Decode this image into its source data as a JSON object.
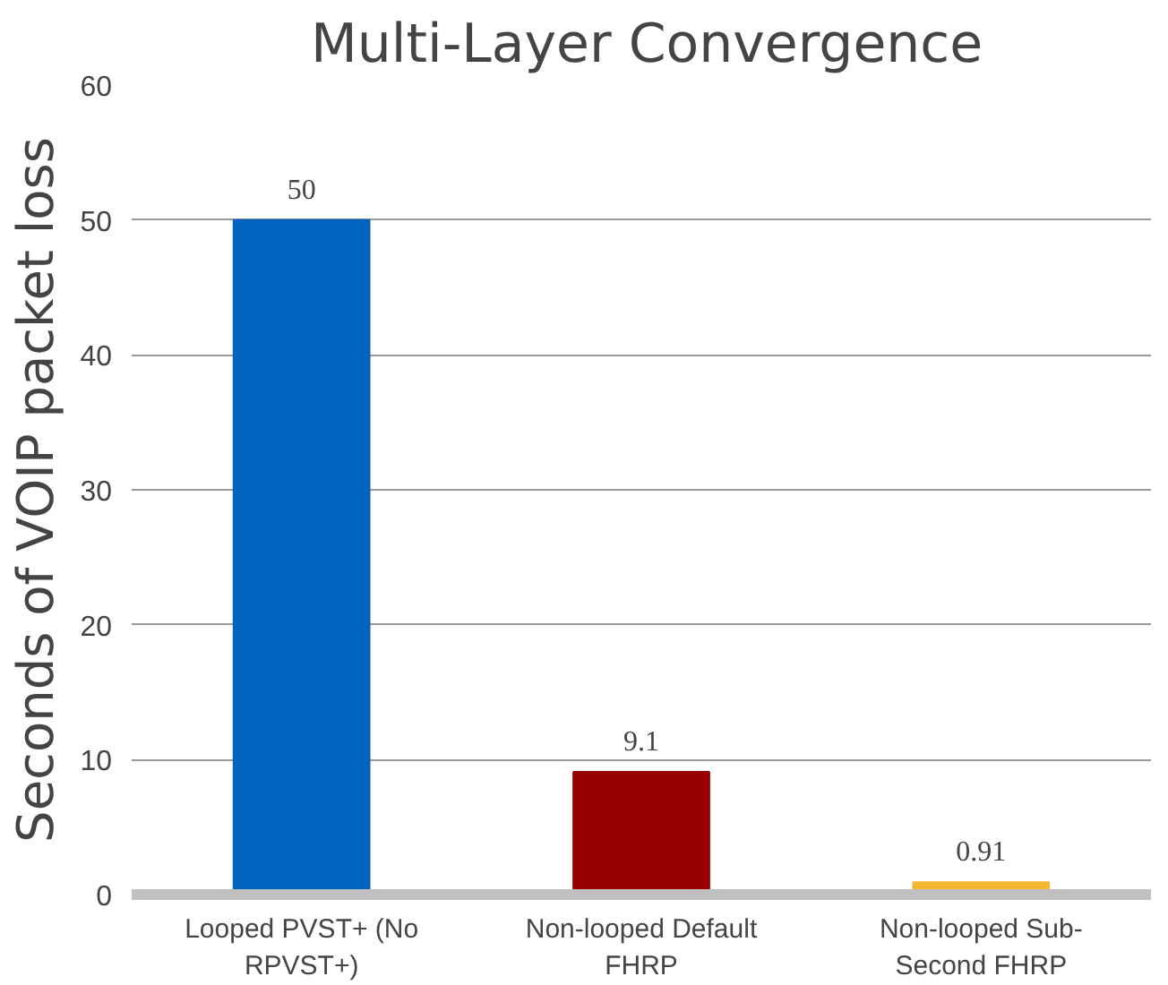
{
  "chart_data": {
    "type": "bar",
    "title": "Multi-Layer Convergence",
    "ylabel": "Seconds of VOIP packet loss",
    "categories": [
      "Looped PVST+ (No RPVST+)",
      "Non-looped Default FHRP",
      "Non-looped Sub-Second FHRP"
    ],
    "values": [
      50,
      9.1,
      0.91
    ],
    "colors": [
      "#0063be",
      "#990000",
      "#f2b830"
    ],
    "ylim": [
      0,
      60
    ],
    "yticks": [
      0,
      10,
      20,
      30,
      40,
      50,
      60
    ],
    "grid": "y",
    "data_labels": true
  }
}
